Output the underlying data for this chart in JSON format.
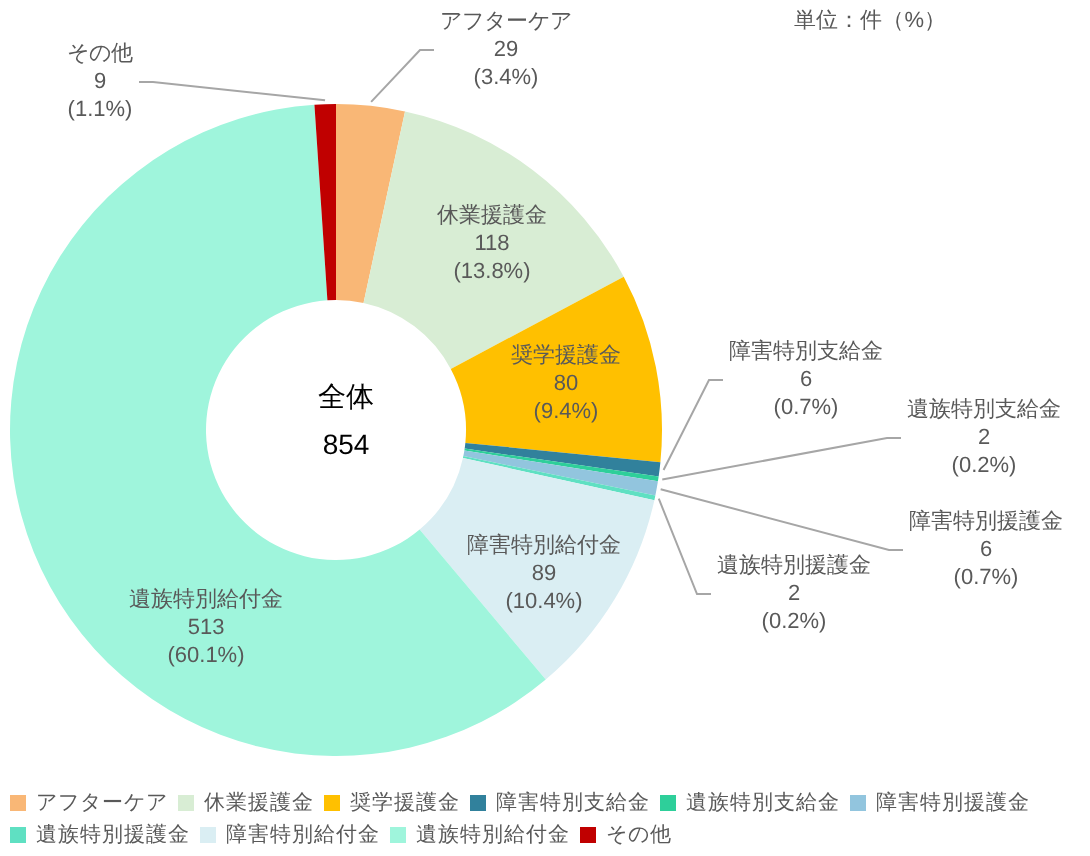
{
  "chart_data": {
    "type": "donut",
    "title": "全体",
    "subtitle": "854",
    "annotations": [
      "単位：件（%）"
    ],
    "categories": [
      "アフターケア",
      "休業援護金",
      "奨学援護金",
      "障害特別支給金",
      "遺族特別支給金",
      "障害特別援護金",
      "遺族特別援護金",
      "障害特別給付金",
      "遺族特別給付金",
      "その他"
    ],
    "values": [
      29,
      118,
      80,
      6,
      2,
      6,
      2,
      89,
      513,
      9
    ],
    "colors": [
      "#f9b776",
      "#d8edd4",
      "#ffc000",
      "#31819c",
      "#2ecf9a",
      "#92c5de",
      "#5fe0c2",
      "#daeef3",
      "#9ff5dc",
      "#c00000"
    ],
    "value_labels": [
      "29\n(3.4%)",
      "118\n(13.8%)",
      "80\n(9.4%)",
      "6\n(0.7%)",
      "2\n(0.2%)",
      "6\n(0.7%)",
      "2\n(0.2%)",
      "89\n(10.4%)",
      "513\n(60.1%)",
      "9\n(1.1%)"
    ],
    "legend": "bottom"
  }
}
